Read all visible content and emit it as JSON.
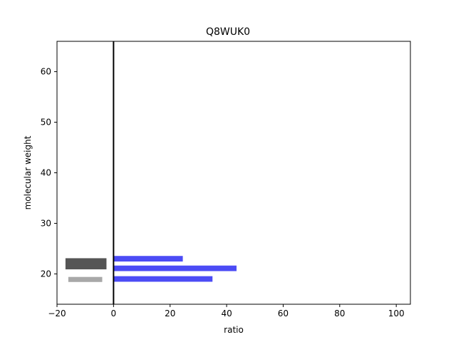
{
  "chart_data": {
    "type": "bar",
    "orientation": "horizontal",
    "title": "Q8WUK0",
    "xlabel": "ratio",
    "ylabel": "molecular weight",
    "xlim": [
      -20,
      105
    ],
    "ylim": [
      14,
      66
    ],
    "xticks": [
      -20,
      0,
      20,
      40,
      60,
      80,
      100
    ],
    "yticks": [
      20,
      30,
      40,
      50,
      60
    ],
    "grid": false,
    "reference_line": {
      "x": 0,
      "color": "#000000"
    },
    "series": [
      {
        "color": "#4b4bf5",
        "bars": [
          {
            "y": 23.0,
            "x_start": 0,
            "x_end": 24.5,
            "thickness": 1.1
          },
          {
            "y": 21.1,
            "x_start": 0,
            "x_end": 43.5,
            "thickness": 1.1
          },
          {
            "y": 19.0,
            "x_start": 0,
            "x_end": 35.0,
            "thickness": 1.1
          }
        ]
      },
      {
        "color": "#555555",
        "bars": [
          {
            "y": 22.0,
            "x_start": -17,
            "x_end": -2.5,
            "thickness": 2.2
          }
        ]
      },
      {
        "color": "#a8a8a8",
        "bars": [
          {
            "y": 18.9,
            "x_start": -16,
            "x_end": -4,
            "thickness": 1.0
          }
        ]
      }
    ]
  }
}
